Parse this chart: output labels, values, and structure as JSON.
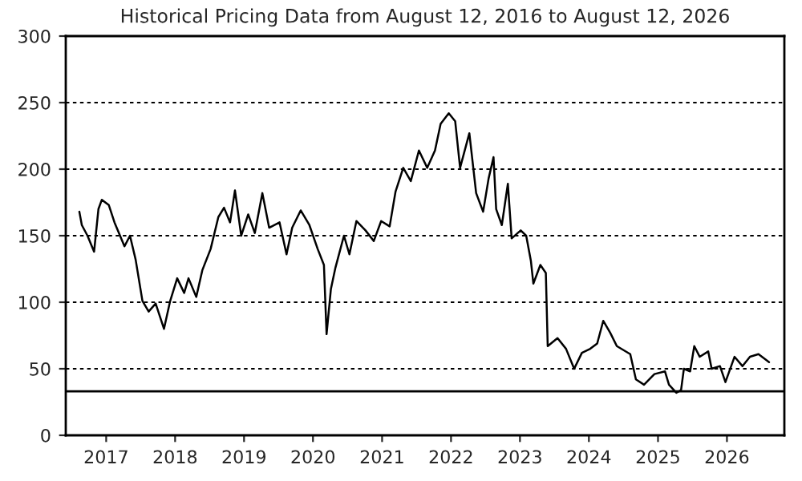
{
  "chart_data": {
    "type": "line",
    "title": "Historical Pricing Data from August 12, 2016 to August 12, 2026",
    "x": [
      "2016-08-12",
      "2016-08-25",
      "2016-09-24",
      "2016-10-29",
      "2016-11-21",
      "2016-12-09",
      "2017-01-15",
      "2017-02-14",
      "2017-04-08",
      "2017-05-07",
      "2017-06-06",
      "2017-07-12",
      "2017-08-14",
      "2017-09-20",
      "2017-11-03",
      "2017-12-06",
      "2018-01-12",
      "2018-02-18",
      "2018-03-13",
      "2018-04-23",
      "2018-05-25",
      "2018-07-08",
      "2018-08-18",
      "2018-09-17",
      "2018-10-19",
      "2018-11-14",
      "2018-12-17",
      "2019-01-23",
      "2019-02-27",
      "2019-04-08",
      "2019-05-14",
      "2019-07-08",
      "2019-08-14",
      "2019-09-13",
      "2019-10-28",
      "2019-12-13",
      "2020-01-26",
      "2020-02-28",
      "2020-03-13",
      "2020-04-05",
      "2020-04-29",
      "2020-06-13",
      "2020-07-12",
      "2020-08-18",
      "2020-10-05",
      "2020-11-18",
      "2020-12-27",
      "2021-02-10",
      "2021-03-13",
      "2021-04-23",
      "2021-06-02",
      "2021-07-15",
      "2021-08-28",
      "2021-10-08",
      "2021-11-07",
      "2021-12-20",
      "2022-01-23",
      "2022-02-18",
      "2022-04-08",
      "2022-05-14",
      "2022-06-20",
      "2022-07-19",
      "2022-08-14",
      "2022-08-28",
      "2022-09-27",
      "2022-10-29",
      "2022-11-18",
      "2023-01-05",
      "2023-02-03",
      "2023-02-28",
      "2023-03-13",
      "2023-04-19",
      "2023-05-18",
      "2023-05-28",
      "2023-07-19",
      "2023-09-02",
      "2023-10-15",
      "2023-11-25",
      "2024-01-08",
      "2024-02-14",
      "2024-03-17",
      "2024-04-23",
      "2024-05-28",
      "2024-08-07",
      "2024-09-06",
      "2024-10-19",
      "2024-12-13",
      "2025-02-07",
      "2025-02-28",
      "2025-04-08",
      "2025-05-03",
      "2025-05-18",
      "2025-06-20",
      "2025-07-12",
      "2025-08-10",
      "2025-09-24",
      "2025-10-12",
      "2025-11-25",
      "2025-12-24",
      "2026-02-10",
      "2026-03-24",
      "2026-05-03",
      "2026-06-17",
      "2026-08-12"
    ],
    "series": [
      {
        "color": "#000000",
        "values": [
          168,
          158,
          150,
          138,
          170,
          177,
          173,
          160,
          142,
          150,
          132,
          101,
          93,
          99,
          80,
          101,
          118,
          107,
          118,
          104,
          124,
          140,
          164,
          171,
          160,
          184,
          150,
          166,
          152,
          182,
          156,
          160,
          136,
          156,
          169,
          158,
          140,
          128,
          76,
          110,
          126,
          150,
          136,
          161,
          154,
          146,
          161,
          157,
          183,
          201,
          191,
          214,
          201,
          214,
          234,
          242,
          236,
          201,
          227,
          182,
          168,
          193,
          209,
          170,
          158,
          189,
          148,
          154,
          150,
          131,
          114,
          128,
          122,
          67,
          73,
          65,
          50,
          62,
          65,
          69,
          86,
          77,
          67,
          61,
          42,
          38,
          46,
          48,
          38,
          32,
          34,
          50,
          48,
          67,
          59,
          63,
          50,
          52,
          40,
          59,
          52,
          59,
          61,
          55
        ]
      }
    ],
    "xlim": [
      "2016-06-01",
      "2026-11-01"
    ],
    "xticks": [
      {
        "value": "2017-01-01",
        "label": "2017"
      },
      {
        "value": "2018-01-01",
        "label": "2018"
      },
      {
        "value": "2019-01-01",
        "label": "2019"
      },
      {
        "value": "2020-01-01",
        "label": "2020"
      },
      {
        "value": "2021-01-01",
        "label": "2021"
      },
      {
        "value": "2022-01-01",
        "label": "2022"
      },
      {
        "value": "2023-01-01",
        "label": "2023"
      },
      {
        "value": "2024-01-01",
        "label": "2024"
      },
      {
        "value": "2025-01-01",
        "label": "2025"
      },
      {
        "value": "2026-01-01",
        "label": "2026"
      }
    ],
    "ylim": [
      0,
      300
    ],
    "yticks": [
      0,
      50,
      100,
      150,
      200,
      250,
      300
    ],
    "grid": "y",
    "legend": false,
    "marker": "none",
    "line_style": "solid",
    "ref_lines": [
      {
        "axis": "y",
        "value": 33,
        "label": null,
        "color": "#000000",
        "line_style": "solid"
      }
    ]
  }
}
